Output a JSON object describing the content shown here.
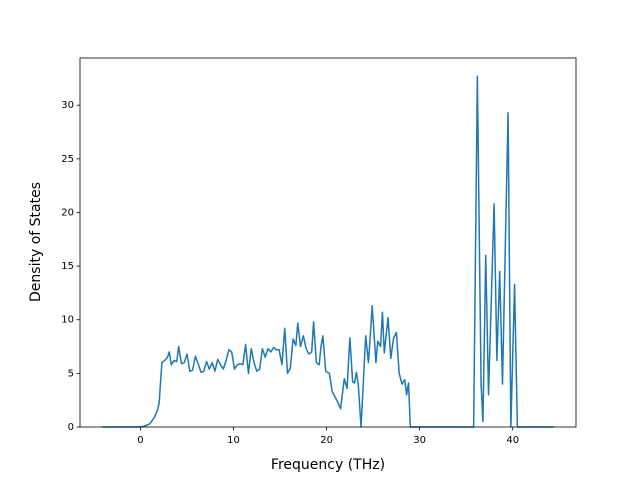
{
  "chart_data": {
    "type": "line",
    "xlabel": "Frequency (THz)",
    "ylabel": "Density of States",
    "color": "#1f77b4",
    "x": [
      -4.1,
      0,
      0.5,
      1,
      1.5,
      1.8,
      2.0,
      2.3,
      2.6,
      2.9,
      3.1,
      3.3,
      3.6,
      3.9,
      4.1,
      4.4,
      4.7,
      5.0,
      5.3,
      5.6,
      5.9,
      6.2,
      6.5,
      6.8,
      7.1,
      7.4,
      7.7,
      8.0,
      8.3,
      8.6,
      8.9,
      9.2,
      9.5,
      9.8,
      10.1,
      10.4,
      10.7,
      11.0,
      11.3,
      11.6,
      11.9,
      12.2,
      12.5,
      12.8,
      13.1,
      13.4,
      13.7,
      14.0,
      14.3,
      14.6,
      14.9,
      15.2,
      15.5,
      15.8,
      16.1,
      16.4,
      16.7,
      16.9,
      17.2,
      17.5,
      17.8,
      18.1,
      18.4,
      18.6,
      18.9,
      19.2,
      19.4,
      19.6,
      19.9,
      20.3,
      20.6,
      21.1,
      21.5,
      21.9,
      22.2,
      22.5,
      22.8,
      23.0,
      23.2,
      23.4,
      23.7,
      24.2,
      24.5,
      24.9,
      25.3,
      25.5,
      25.8,
      26.0,
      26.2,
      26.6,
      26.9,
      27.2,
      27.5,
      27.8,
      28.1,
      28.4,
      28.6,
      28.8,
      29.0,
      35.8,
      36.2,
      36.6,
      36.8,
      37.1,
      37.4,
      38.0,
      38.3,
      38.6,
      38.9,
      39.5,
      39.8,
      40.2,
      40.5,
      44.4
    ],
    "values": [
      0,
      0,
      0.1,
      0.3,
      0.9,
      1.5,
      2.2,
      6.0,
      6.2,
      6.5,
      7.0,
      5.8,
      6.2,
      6.1,
      7.5,
      5.9,
      6.0,
      6.8,
      5.2,
      5.3,
      6.6,
      5.9,
      5.1,
      5.2,
      6.1,
      5.4,
      6.0,
      5.2,
      6.3,
      5.8,
      5.4,
      6.2,
      7.2,
      7.0,
      5.4,
      5.8,
      5.9,
      5.8,
      7.7,
      5.0,
      7.3,
      6.0,
      5.2,
      5.4,
      7.3,
      6.5,
      7.3,
      7.0,
      7.4,
      7.2,
      7.2,
      5.8,
      9.2,
      5.0,
      5.5,
      8.2,
      7.6,
      9.7,
      7.5,
      8.5,
      7.3,
      6.8,
      7.0,
      9.8,
      6.0,
      5.8,
      7.5,
      8.5,
      5.2,
      5.0,
      3.3,
      2.5,
      1.7,
      4.5,
      3.6,
      8.3,
      4.2,
      4.1,
      5.1,
      4.0,
      0,
      8.5,
      6.0,
      11.3,
      6.0,
      8.0,
      7.5,
      10.7,
      6.9,
      10.2,
      6.4,
      8.3,
      8.8,
      5.0,
      4.0,
      4.4,
      3.0,
      4.1,
      0,
      0,
      32.7,
      4.0,
      0.5,
      16.0,
      3.0,
      20.8,
      6.2,
      14.5,
      4.0,
      29.3,
      0,
      13.3,
      0,
      0
    ],
    "xlim": [
      -6.5,
      46.8
    ],
    "ylim": [
      0,
      34.4
    ],
    "xticks": [
      0,
      10,
      20,
      30,
      40
    ],
    "yticks": [
      0,
      5,
      10,
      15,
      20,
      25,
      30
    ]
  }
}
